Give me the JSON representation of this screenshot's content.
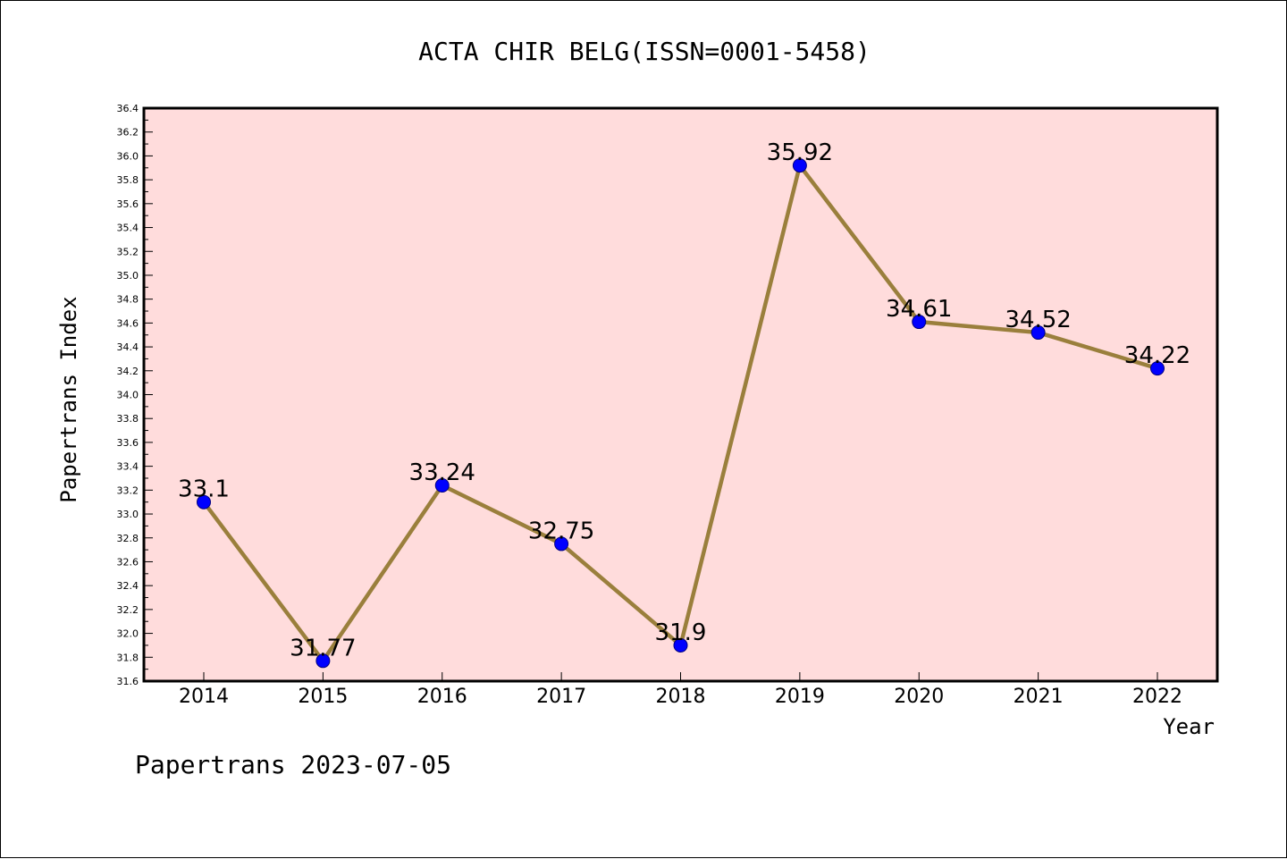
{
  "chart_data": {
    "type": "line",
    "title": "ACTA CHIR BELG(ISSN=0001-5458)",
    "xlabel": "Year",
    "ylabel": "Papertrans Index",
    "footer": "Papertrans 2023-07-05",
    "categories": [
      "2014",
      "2015",
      "2016",
      "2017",
      "2018",
      "2019",
      "2020",
      "2021",
      "2022"
    ],
    "series": [
      {
        "values": [
          33.1,
          31.77,
          33.24,
          32.75,
          31.9,
          35.92,
          34.61,
          34.52,
          34.22
        ],
        "labels": [
          "33.1",
          "31.77",
          "33.24",
          "32.75",
          "31.9",
          "35.92",
          "34.61",
          "34.52",
          "34.22"
        ]
      }
    ],
    "ylim": [
      31.6,
      36.4
    ],
    "ytick_step": 0.2,
    "ytick_labels": [
      "31.6",
      "31.8",
      "32.0",
      "32.2",
      "32.4",
      "32.6",
      "32.8",
      "33.0",
      "33.2",
      "33.4",
      "33.6",
      "33.8",
      "34.0",
      "34.2",
      "34.4",
      "34.6",
      "34.8",
      "35.0",
      "35.2",
      "35.4",
      "35.6",
      "35.8",
      "36.0",
      "36.2",
      "36.4"
    ],
    "grid": false,
    "colors": {
      "plot_background": "#ffdcdc",
      "line": "#9a7f3c",
      "marker_fill": "#0000ff",
      "marker_edge": "#000080"
    }
  }
}
